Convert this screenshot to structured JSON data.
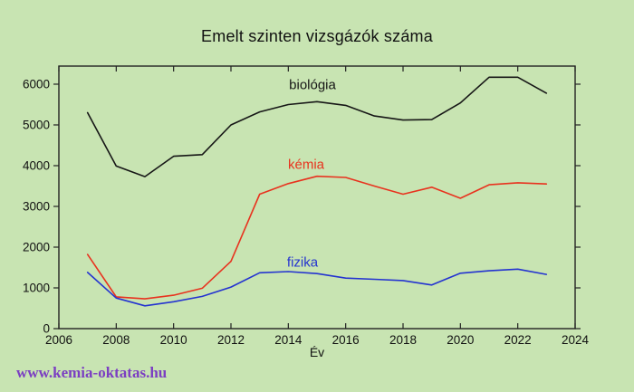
{
  "title": "Emelt szinten vizsgázók száma",
  "watermark_text": "www.kemia-oktatas.hu",
  "colors": {
    "background": "#c8e4b2",
    "axis": "#222222",
    "tick_label": "#111111",
    "biologia": "#161616",
    "kemia": "#e8321e",
    "fizika": "#2433d0",
    "watermark": "#7b3ec2"
  },
  "chart_data": {
    "type": "line",
    "title": "Emelt szinten vizsgázók száma",
    "xlabel": "Év",
    "ylabel": "",
    "grid": false,
    "legend_position": "inline-labels",
    "xlim": [
      2006,
      2024
    ],
    "ylim": [
      0,
      6444
    ],
    "x_ticks": [
      2006,
      2008,
      2010,
      2012,
      2014,
      2016,
      2018,
      2020,
      2022,
      2024
    ],
    "y_ticks": [
      0,
      1000,
      2000,
      3000,
      4000,
      5000,
      6000
    ],
    "x": [
      2007,
      2008,
      2009,
      2010,
      2011,
      2012,
      2013,
      2014,
      2015,
      2016,
      2017,
      2018,
      2019,
      2020,
      2021,
      2022,
      2023
    ],
    "series": [
      {
        "name": "biológia",
        "color": "#161616",
        "values": [
          5300,
          3990,
          3730,
          4230,
          4270,
          5000,
          5320,
          5500,
          5570,
          5480,
          5220,
          5120,
          5130,
          5540,
          6170,
          6170,
          5780
        ]
      },
      {
        "name": "kémia",
        "color": "#e8321e",
        "values": [
          1820,
          780,
          730,
          820,
          990,
          1650,
          3300,
          3560,
          3740,
          3710,
          3500,
          3300,
          3470,
          3200,
          3530,
          3580,
          3550
        ]
      },
      {
        "name": "fizika",
        "color": "#2433d0",
        "values": [
          1380,
          750,
          560,
          660,
          790,
          1020,
          1370,
          1400,
          1350,
          1240,
          1210,
          1180,
          1070,
          1360,
          1420,
          1460,
          1330
        ]
      }
    ]
  }
}
